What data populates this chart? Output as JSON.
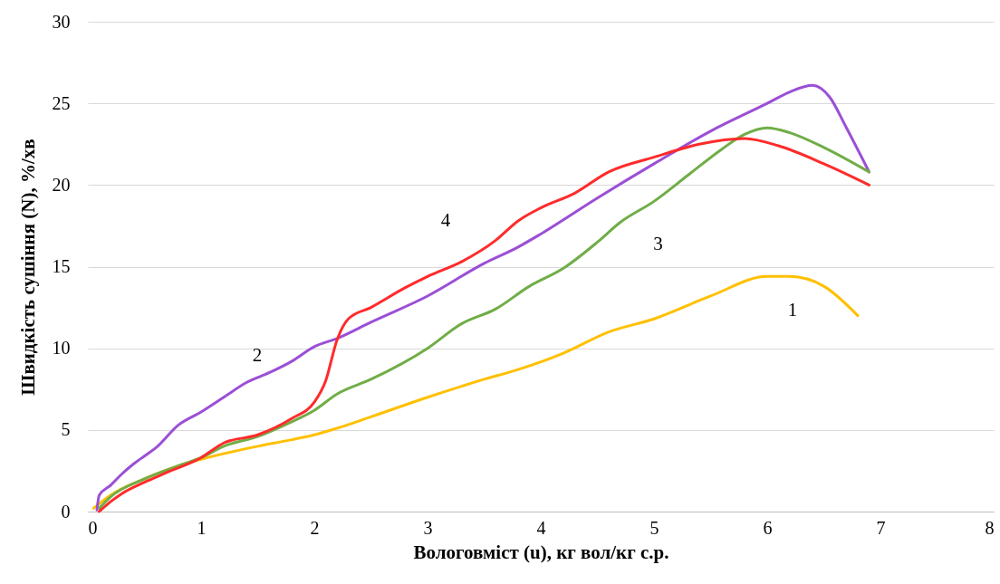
{
  "chart_data": {
    "type": "line",
    "xlabel": "Вологовміст (u), кг вол/кг с.р.",
    "ylabel": "Швидкість сушіння (N), %/хв",
    "xlim": [
      0,
      8
    ],
    "xticks": [
      0,
      1,
      2,
      3,
      4,
      5,
      6,
      7,
      8
    ],
    "ylim": [
      0,
      30
    ],
    "yticks": [
      0,
      5,
      10,
      15,
      20,
      25,
      30
    ],
    "grid": "y",
    "legend": false,
    "marker": "none",
    "line_style": "solid",
    "series": [
      {
        "name": "1",
        "color": "#ffc000",
        "x": [
          0.05,
          0.2,
          0.5,
          0.8,
          1,
          1.5,
          1.8,
          2,
          2.2,
          2.5,
          3,
          3.5,
          3.8,
          4.2,
          4.6,
          5,
          5.5,
          6,
          6.2,
          6.5,
          6.8
        ],
        "values": [
          0.2,
          1.0,
          2.0,
          2.8,
          3.2,
          4.0,
          4.4,
          4.7,
          5.1,
          5.8,
          7.0,
          8.1,
          8.7,
          9.7,
          11.0,
          11.8,
          13.2,
          14.4,
          14.4,
          13.8,
          12.0
        ]
      },
      {
        "name": "2",
        "color": "#9b4fd6",
        "x": [
          0.08,
          0.1,
          0.2,
          0.3,
          0.4,
          0.5,
          0.6,
          0.8,
          1,
          1.2,
          1.4,
          1.6,
          1.8,
          2,
          2.2,
          2.5,
          3,
          3.5,
          3.8,
          4,
          4.5,
          5,
          5.5,
          6,
          6.2,
          6.4,
          6.55,
          6.7,
          6.9
        ],
        "values": [
          0.1,
          1.0,
          1.6,
          2.3,
          2.9,
          3.4,
          3.9,
          5.3,
          6.1,
          7.0,
          7.9,
          8.5,
          9.2,
          10.1,
          10.6,
          11.6,
          13.2,
          15.2,
          16.2,
          17.0,
          19.2,
          21.3,
          23.3,
          25.0,
          25.7,
          26.1,
          25.4,
          23.5,
          20.8
        ]
      },
      {
        "name": "3",
        "color": "#70ad47",
        "x": [
          0.1,
          0.2,
          0.5,
          0.8,
          1,
          1.2,
          1.5,
          1.8,
          2,
          2.2,
          2.5,
          3,
          3.3,
          3.6,
          3.9,
          4.2,
          4.5,
          4.7,
          5,
          5.3,
          5.6,
          5.8,
          6,
          6.2,
          6.5,
          6.9
        ],
        "values": [
          0.2,
          0.9,
          2.0,
          2.8,
          3.3,
          4.0,
          4.6,
          5.5,
          6.2,
          7.2,
          8.1,
          10.0,
          11.5,
          12.4,
          13.8,
          14.9,
          16.5,
          17.7,
          19.0,
          20.6,
          22.2,
          23.1,
          23.5,
          23.2,
          22.3,
          20.8
        ]
      },
      {
        "name": "4",
        "color": "#ff2b2b",
        "x": [
          0.1,
          0.2,
          0.3,
          0.5,
          0.7,
          1,
          1.2,
          1.5,
          1.8,
          2,
          2.1,
          2.2,
          2.3,
          2.5,
          2.8,
          3,
          3.3,
          3.6,
          3.8,
          4,
          4.3,
          4.6,
          5,
          5.4,
          5.8,
          6.1,
          6.5,
          6.9
        ],
        "values": [
          0,
          0.6,
          1.1,
          1.8,
          2.4,
          3.3,
          4.2,
          4.7,
          5.7,
          6.7,
          8.0,
          10.5,
          11.8,
          12.5,
          13.7,
          14.4,
          15.3,
          16.6,
          17.8,
          18.6,
          19.5,
          20.8,
          21.7,
          22.5,
          22.85,
          22.4,
          21.3,
          20.0
        ]
      }
    ]
  }
}
